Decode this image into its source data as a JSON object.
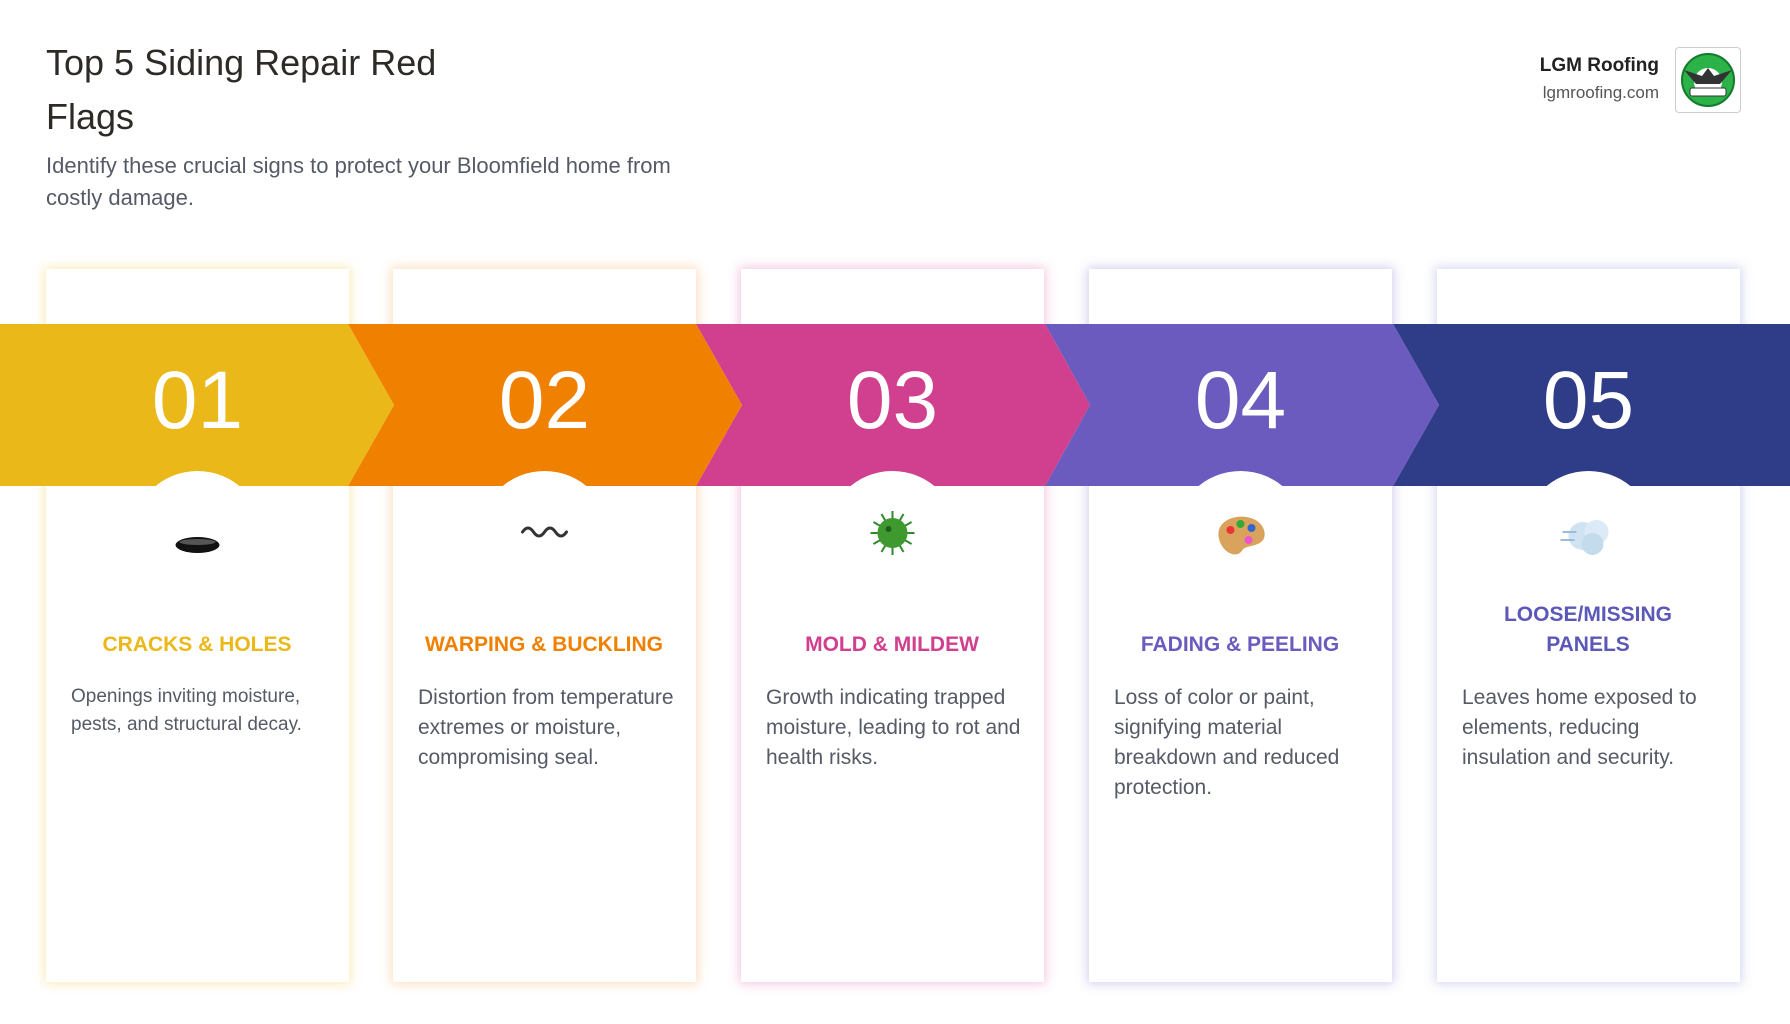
{
  "header": {
    "title": "Top 5 Siding Repair Red Flags",
    "subtitle": "Identify these crucial signs to protect your Bloomfield home from costly damage."
  },
  "brand": {
    "name": "LGM Roofing",
    "url": "lgmroofing.com"
  },
  "steps": [
    {
      "number": "01",
      "title": "CRACKS & HOLES",
      "description": "Openings inviting moisture, pests, and structural decay."
    },
    {
      "number": "02",
      "title": "WARPING & BUCKLING",
      "description": "Distortion from temperature extremes or moisture, compromising seal."
    },
    {
      "number": "03",
      "title": "MOLD & MILDEW",
      "description": "Growth indicating trapped moisture, leading to rot and health risks."
    },
    {
      "number": "04",
      "title": "FADING & PEELING",
      "description": "Loss of color or paint, signifying material breakdown and reduced protection."
    },
    {
      "number": "05",
      "title": "LOOSE/MISSING PANELS",
      "description": "Leaves home exposed to elements, reducing insulation and security."
    }
  ]
}
